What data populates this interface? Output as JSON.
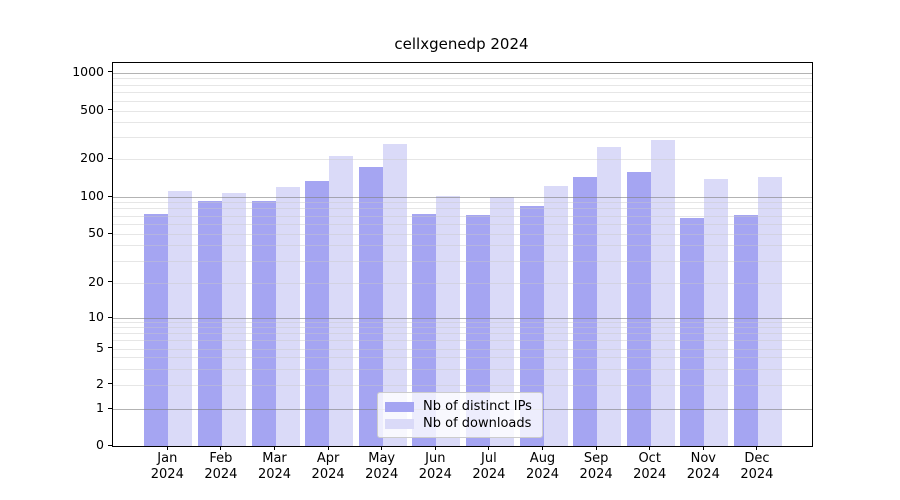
{
  "title": "cellxgenedp 2024",
  "chart_data": {
    "type": "bar",
    "title": "cellxgenedp 2024",
    "categories": [
      "Jan",
      "Feb",
      "Mar",
      "Apr",
      "May",
      "Jun",
      "Jul",
      "Aug",
      "Sep",
      "Oct",
      "Nov",
      "Dec"
    ],
    "x_tick_line2": "2024",
    "series": [
      {
        "name": "Nb of distinct IPs",
        "color": "#a5a5f2",
        "values": [
          73,
          92,
          92,
          134,
          172,
          73,
          72,
          84,
          145,
          159,
          67,
          71
        ]
      },
      {
        "name": "Nb of downloads",
        "color": "#dadaf8",
        "values": [
          112,
          108,
          121,
          212,
          264,
          101,
          100,
          122,
          253,
          289,
          140,
          145
        ]
      }
    ],
    "xlabel": "",
    "ylabel": "",
    "yscale": "symlog",
    "ylim": [
      0,
      1240
    ],
    "y_ticks": [
      0,
      1,
      2,
      5,
      10,
      20,
      50,
      100,
      200,
      500,
      1000
    ],
    "grid": "major lines at 1,10,100,1000; minor lines at 2-9 per decade; drawn above bars",
    "legend_position": "lower center"
  },
  "colors": {
    "background": "#ffffff",
    "spine": "#000000",
    "major_grid": "#a9a9a9",
    "minor_grid": "#e7e7e7",
    "legend_border": "#cccccc"
  }
}
